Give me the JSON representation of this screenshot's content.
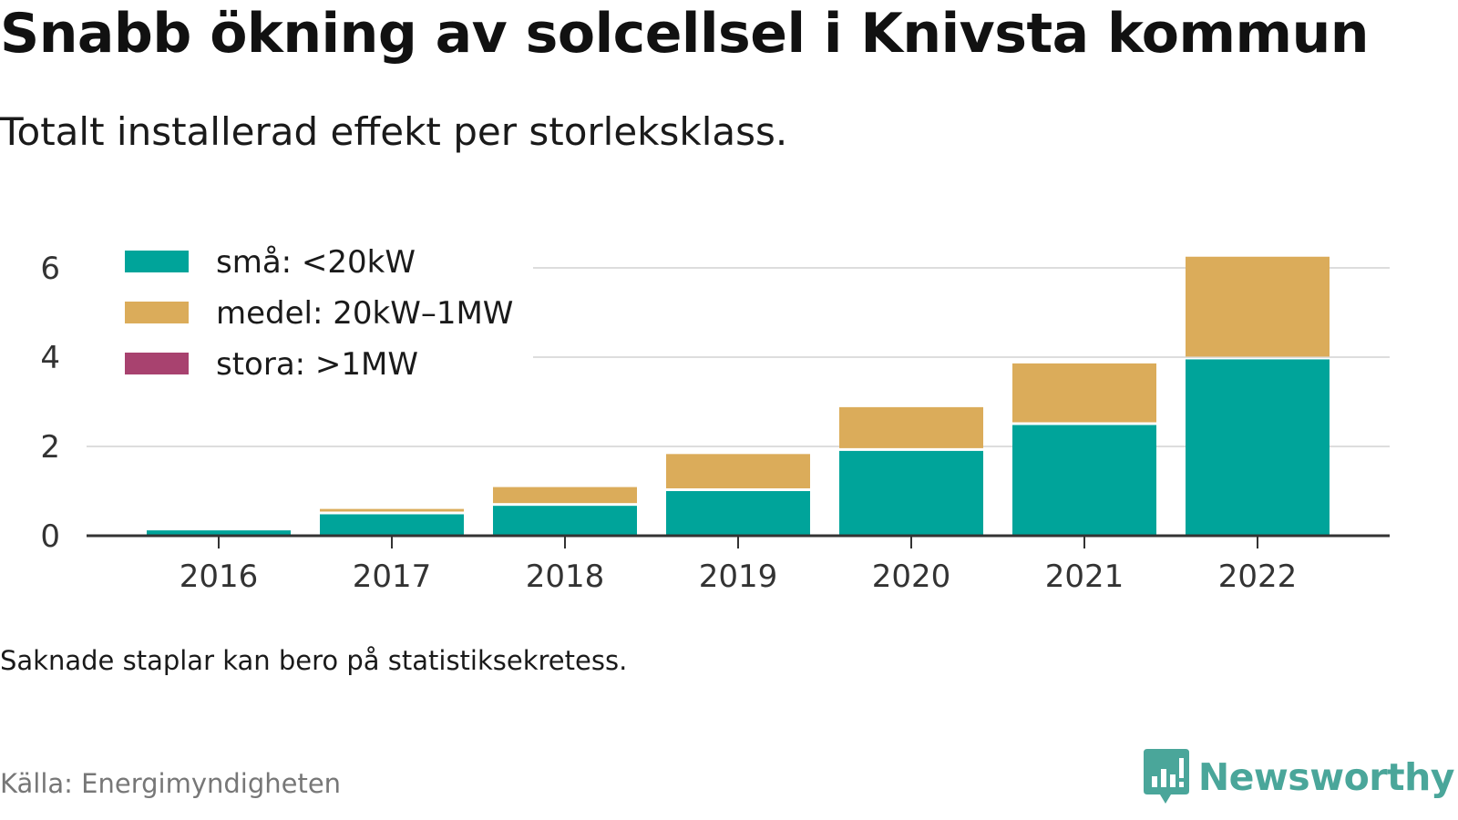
{
  "header": {
    "title": "Snabb ökning av solcellsel i Knivsta kommun",
    "subtitle": "Totalt installerad effekt per storleksklass."
  },
  "footer": {
    "note": "Saknade staplar kan bero på statistiksekretess.",
    "source": "Källa: Energimyndigheten",
    "brand": "Newsworthy"
  },
  "colors": {
    "small": "#00a49a",
    "medium": "#dbac5a",
    "large": "#a8426f",
    "brand": "#4aa69a"
  },
  "chart_data": {
    "type": "bar",
    "stacked": true,
    "categories": [
      "2016",
      "2017",
      "2018",
      "2019",
      "2020",
      "2021",
      "2022"
    ],
    "series": [
      {
        "name": "små: <20kW",
        "color": "#00a49a",
        "values": [
          0.12,
          0.48,
          0.67,
          1.0,
          1.9,
          2.48,
          3.95
        ]
      },
      {
        "name": "medel: 20kW–1MW",
        "color": "#dbac5a",
        "values": [
          0.0,
          0.12,
          0.42,
          0.83,
          0.98,
          1.38,
          2.3
        ]
      },
      {
        "name": "stora: >1MW",
        "color": "#a8426f",
        "values": [
          0,
          0,
          0,
          0,
          0,
          0,
          0
        ]
      }
    ],
    "yticks": [
      0,
      2,
      4,
      6
    ],
    "ylim": [
      0,
      6.5
    ],
    "grid": true,
    "legend": "top-left"
  }
}
